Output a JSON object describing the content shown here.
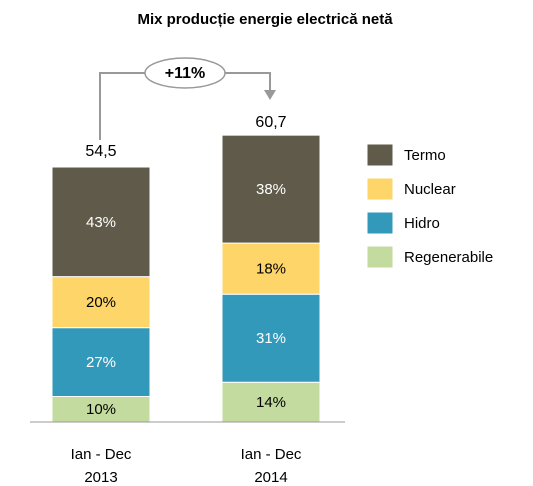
{
  "chart_data": {
    "type": "stacked_bar_percent",
    "title": "Mix producție energie electrică netă",
    "categories": [
      "Ian - Dec\n2013",
      "Ian - Dec\n2014"
    ],
    "totals": {
      "values": [
        54.5,
        60.7
      ],
      "value_labels": [
        "54,5",
        "60,7"
      ]
    },
    "annotation": "+11%",
    "series": [
      {
        "name": "Termo",
        "color": "#5f5a4a",
        "label_color": "#ffffff",
        "values": [
          43,
          38
        ],
        "value_labels": [
          "43%",
          "38%"
        ]
      },
      {
        "name": "Nuclear",
        "color": "#fdd568",
        "label_color": "#000000",
        "values": [
          20,
          18
        ],
        "value_labels": [
          "20%",
          "18%"
        ]
      },
      {
        "name": "Hidro",
        "color": "#3399bb",
        "label_color": "#ffffff",
        "values": [
          27,
          31
        ],
        "value_labels": [
          "27%",
          "31%"
        ]
      },
      {
        "name": "Regenerabile",
        "color": "#c4dba0",
        "label_color": "#000000",
        "values": [
          10,
          14
        ],
        "value_labels": [
          "10%",
          "14%"
        ]
      }
    ]
  }
}
